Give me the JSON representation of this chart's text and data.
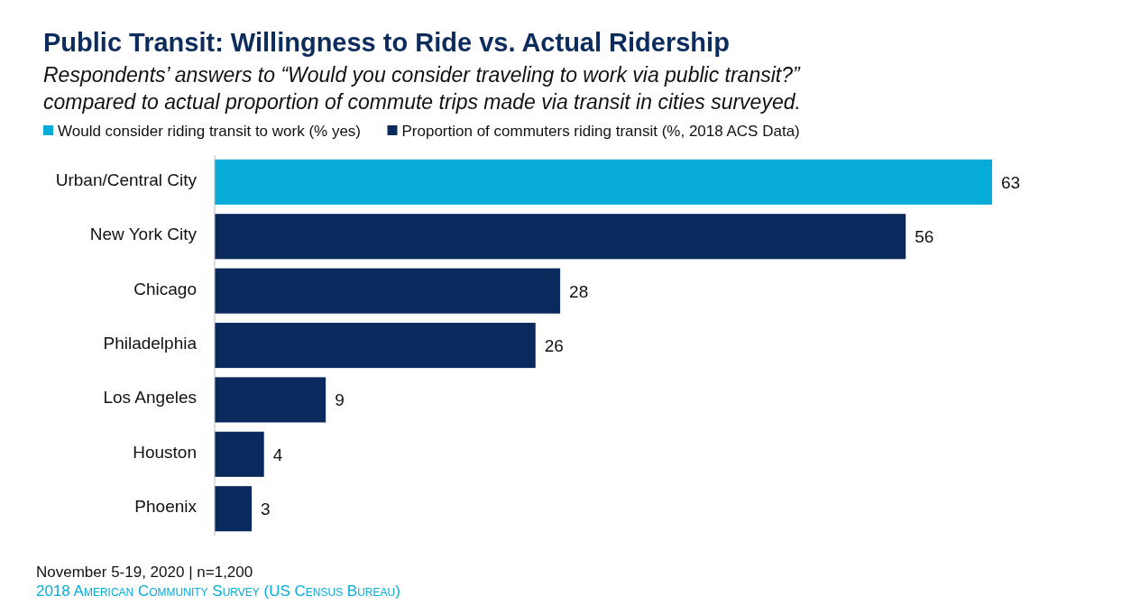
{
  "chart_data": {
    "type": "bar",
    "orientation": "horizontal",
    "title": "Public Transit: Willingness to Ride vs. Actual Ridership",
    "subtitle": "Respondents’ answers to “Would you consider traveling to work via public transit?” compared to actual proportion of commute trips made via transit in cities surveyed.",
    "categories": [
      "Urban/Central City",
      "New York City",
      "Chicago",
      "Philadelphia",
      "Los Angeles",
      "Houston",
      "Phoenix"
    ],
    "series": [
      {
        "name": "Would consider riding transit to work (% yes)",
        "color": "#07acd9",
        "values": [
          63,
          null,
          null,
          null,
          null,
          null,
          null
        ]
      },
      {
        "name": "Proportion of commuters riding transit (%, 2018 ACS Data)",
        "color": "#0a2a5e",
        "values": [
          null,
          56,
          28,
          26,
          9,
          4,
          3
        ]
      }
    ],
    "data_labels": true,
    "legend": "top",
    "annotations": [
      "November 5-19, 2020 | n=1,200",
      "2018 American Community Survey (US Census Bureau)"
    ]
  }
}
